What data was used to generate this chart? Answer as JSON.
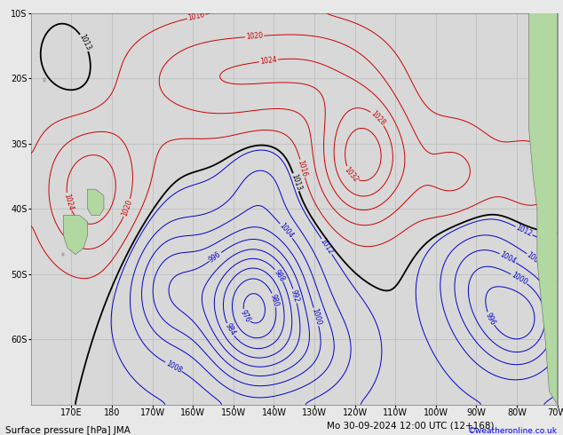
{
  "title_left": "Surface pressure [hPa] JMA",
  "title_right": "Mo 30-09-2024 12:00 UTC (12+168)",
  "credit": "©weatheronline.co.uk",
  "background_color": "#e8e8e8",
  "map_bg": "#d8d8d8",
  "land_color": "#b0d8a0",
  "grid_color": "#bbbbbb",
  "lon_min": 160,
  "lon_max": 290,
  "lat_min": -70,
  "lat_max": -10,
  "lon_ticks": [
    170,
    180,
    190,
    200,
    210,
    220,
    230,
    240,
    250,
    260,
    270,
    280,
    290
  ],
  "lat_ticks": [
    -60,
    -50,
    -40,
    -30,
    -20,
    -10
  ],
  "lon_labels": [
    "170E",
    "180",
    "170W",
    "160W",
    "150W",
    "140W",
    "130W",
    "120W",
    "110W",
    "100W",
    "90W",
    "80W",
    "70W"
  ],
  "lat_labels": [
    "60S",
    "50S",
    "40S",
    "30S",
    "20S",
    "10S"
  ],
  "font_size_labels": 7,
  "font_size_title": 7.5
}
